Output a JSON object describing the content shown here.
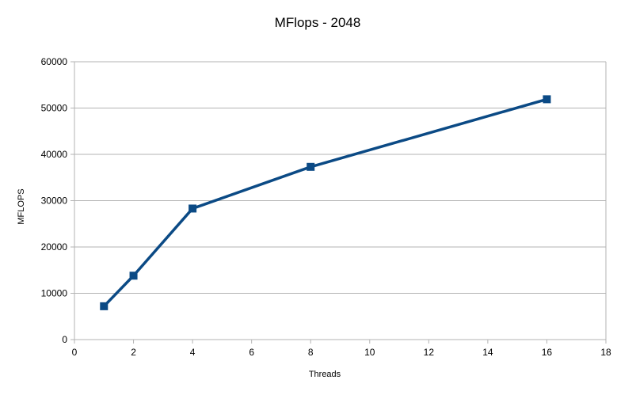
{
  "chart_data": {
    "type": "scatter",
    "title": "MFlops - 2048",
    "xlabel": "Threads",
    "ylabel": "MFLOPS",
    "xlim": [
      0,
      18
    ],
    "ylim": [
      0,
      60000
    ],
    "xticks": [
      0,
      2,
      4,
      6,
      8,
      10,
      12,
      14,
      16,
      18
    ],
    "yticks": [
      0,
      10000,
      20000,
      30000,
      40000,
      50000,
      60000
    ],
    "grid": "horizontal",
    "legend": "none",
    "series": [
      {
        "x": [
          1,
          2,
          4,
          8,
          16
        ],
        "y": [
          7200,
          13800,
          28300,
          37300,
          51900
        ],
        "color": "#0b4a85",
        "marker": "square",
        "line": true
      }
    ]
  }
}
